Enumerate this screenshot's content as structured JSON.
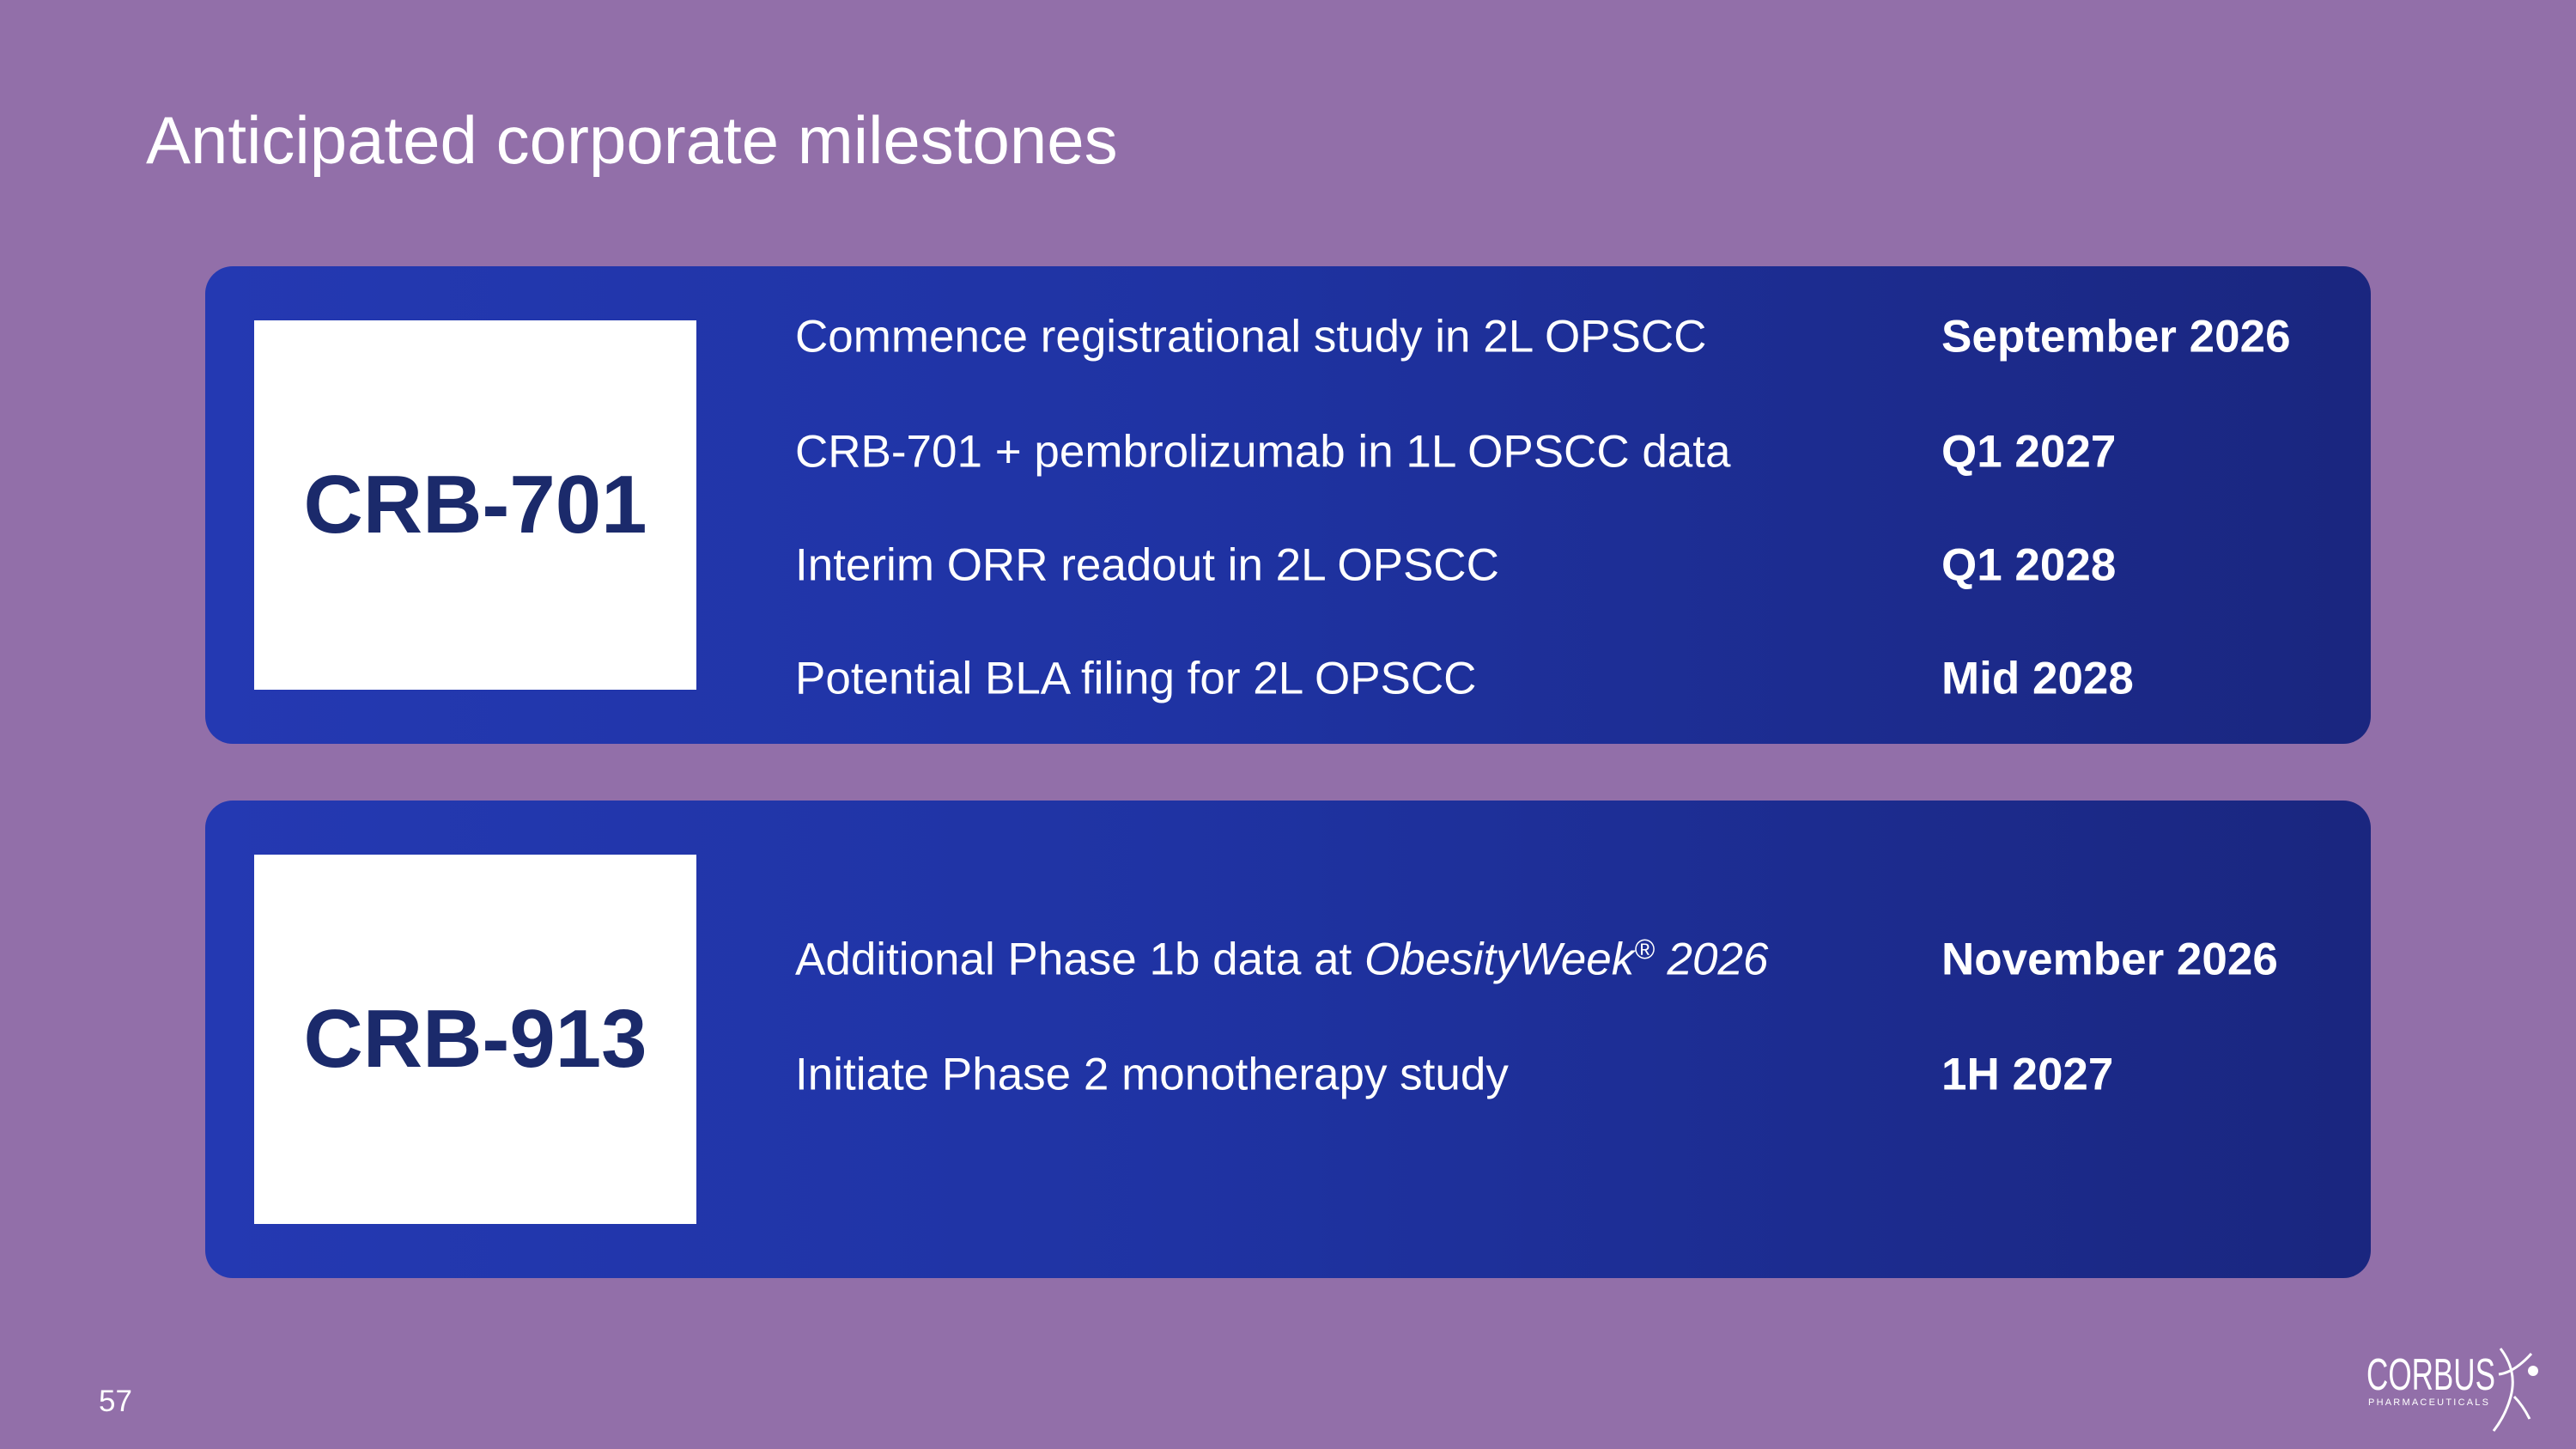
{
  "title": "Anticipated corporate milestones",
  "cards": [
    {
      "label": "CRB-701",
      "milestones": [
        {
          "text": [
            {
              "text": "Commence registrational study in 2L OPSCC"
            }
          ],
          "date": "September 2026"
        },
        {
          "text": [
            {
              "text": "CRB-701 + pembrolizumab in 1L OPSCC data"
            }
          ],
          "date": "Q1 2027"
        },
        {
          "text": [
            {
              "text": "Interim ORR readout in 2L OPSCC"
            }
          ],
          "date": "Q1 2028"
        },
        {
          "text": [
            {
              "text": "Potential BLA filing for 2L OPSCC"
            }
          ],
          "date": "Mid 2028"
        }
      ]
    },
    {
      "label": "CRB-913",
      "milestones": [
        {
          "text": [
            {
              "text": "Additional Phase 1b data at "
            },
            {
              "text": "ObesityWeek",
              "style": "italic"
            },
            {
              "text": "®",
              "style": "superscript"
            },
            {
              "text": " 2026",
              "style": "italic"
            }
          ],
          "date": "November 2026"
        },
        {
          "text": [
            {
              "text": "Initiate Phase 2 monotherapy study"
            }
          ],
          "date": "1H 2027"
        }
      ]
    }
  ],
  "page_number": "57",
  "logo": {
    "name": "CORBUS",
    "subtitle": "PHARMACEUTICALS"
  }
}
